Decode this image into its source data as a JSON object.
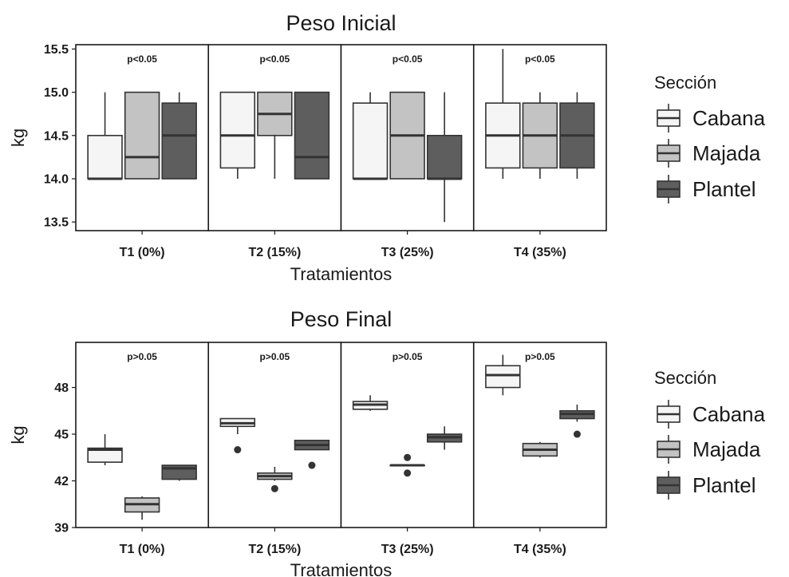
{
  "chart_data": [
    {
      "type": "boxplot",
      "title": "Peso Inicial",
      "xlabel": "Tratamientos",
      "ylabel": "kg",
      "ylim": [
        13.4,
        15.55
      ],
      "yticks": [
        13.5,
        14.0,
        14.5,
        15.0,
        15.5
      ],
      "ytick_labels": [
        "13.5",
        "14.0",
        "14.5",
        "15.0",
        "15.5"
      ],
      "legend": {
        "title": "Sección",
        "entries": [
          "Cabana",
          "Majada",
          "Plantel"
        ],
        "placement": "right"
      },
      "facets": [
        {
          "label": "T1 (0%)",
          "annotation": "p<0.05",
          "boxes": [
            {
              "series": "Cabana",
              "min": 14.0,
              "q1": 14.0,
              "median": 14.0,
              "q3": 14.5,
              "max": 15.0,
              "outliers": []
            },
            {
              "series": "Majada",
              "min": 14.0,
              "q1": 14.0,
              "median": 14.25,
              "q3": 15.0,
              "max": 15.0,
              "outliers": []
            },
            {
              "series": "Plantel",
              "min": 14.0,
              "q1": 14.0,
              "median": 14.5,
              "q3": 14.875,
              "max": 15.0,
              "outliers": []
            }
          ]
        },
        {
          "label": "T2 (15%)",
          "annotation": "p<0.05",
          "boxes": [
            {
              "series": "Cabana",
              "min": 14.0,
              "q1": 14.125,
              "median": 14.5,
              "q3": 15.0,
              "max": 15.0,
              "outliers": []
            },
            {
              "series": "Majada",
              "min": 14.0,
              "q1": 14.5,
              "median": 14.75,
              "q3": 15.0,
              "max": 15.0,
              "outliers": []
            },
            {
              "series": "Plantel",
              "min": 14.0,
              "q1": 14.0,
              "median": 14.25,
              "q3": 15.0,
              "max": 15.0,
              "outliers": []
            }
          ]
        },
        {
          "label": "T3 (25%)",
          "annotation": "p<0.05",
          "boxes": [
            {
              "series": "Cabana",
              "min": 14.0,
              "q1": 14.0,
              "median": 14.0,
              "q3": 14.875,
              "max": 15.0,
              "outliers": []
            },
            {
              "series": "Majada",
              "min": 14.0,
              "q1": 14.0,
              "median": 14.5,
              "q3": 15.0,
              "max": 15.0,
              "outliers": []
            },
            {
              "series": "Plantel",
              "min": 13.5,
              "q1": 14.0,
              "median": 14.0,
              "q3": 14.5,
              "max": 15.0,
              "outliers": []
            }
          ]
        },
        {
          "label": "T4 (35%)",
          "annotation": "p<0.05",
          "boxes": [
            {
              "series": "Cabana",
              "min": 14.0,
              "q1": 14.125,
              "median": 14.5,
              "q3": 14.875,
              "max": 15.5,
              "outliers": []
            },
            {
              "series": "Majada",
              "min": 14.0,
              "q1": 14.125,
              "median": 14.5,
              "q3": 14.875,
              "max": 15.0,
              "outliers": []
            },
            {
              "series": "Plantel",
              "min": 14.0,
              "q1": 14.125,
              "median": 14.5,
              "q3": 14.875,
              "max": 15.0,
              "outliers": []
            }
          ]
        }
      ]
    },
    {
      "type": "boxplot",
      "title": "Peso Final",
      "xlabel": "Tratamientos",
      "ylabel": "kg",
      "ylim": [
        39.0,
        50.9
      ],
      "yticks": [
        39,
        42,
        45,
        48
      ],
      "ytick_labels": [
        "39",
        "42",
        "45",
        "48"
      ],
      "legend": {
        "title": "Sección",
        "entries": [
          "Cabana",
          "Majada",
          "Plantel"
        ],
        "placement": "right"
      },
      "facets": [
        {
          "label": "T1 (0%)",
          "annotation": "p>0.05",
          "boxes": [
            {
              "series": "Cabana",
              "min": 43.0,
              "q1": 43.2,
              "median": 44.0,
              "q3": 44.1,
              "max": 45.0,
              "outliers": []
            },
            {
              "series": "Majada",
              "min": 39.5,
              "q1": 40.0,
              "median": 40.5,
              "q3": 40.9,
              "max": 41.0,
              "outliers": []
            },
            {
              "series": "Plantel",
              "min": 42.0,
              "q1": 42.1,
              "median": 42.8,
              "q3": 43.0,
              "max": 43.0,
              "outliers": []
            }
          ]
        },
        {
          "label": "T2 (15%)",
          "annotation": "p>0.05",
          "boxes": [
            {
              "series": "Cabana",
              "min": 45.0,
              "q1": 45.5,
              "median": 45.7,
              "q3": 46.0,
              "max": 46.0,
              "outliers": [
                44.0
              ]
            },
            {
              "series": "Majada",
              "min": 42.0,
              "q1": 42.1,
              "median": 42.3,
              "q3": 42.5,
              "max": 42.9,
              "outliers": [
                41.5
              ]
            },
            {
              "series": "Plantel",
              "min": 44.0,
              "q1": 44.0,
              "median": 44.3,
              "q3": 44.6,
              "max": 44.6,
              "outliers": [
                43.0
              ]
            }
          ]
        },
        {
          "label": "T3 (25%)",
          "annotation": "p>0.05",
          "boxes": [
            {
              "series": "Cabana",
              "min": 46.5,
              "q1": 46.6,
              "median": 46.9,
              "q3": 47.1,
              "max": 47.5,
              "outliers": []
            },
            {
              "series": "Majada",
              "min": 43.0,
              "q1": 43.0,
              "median": 43.0,
              "q3": 43.0,
              "max": 43.0,
              "outliers": [
                43.5,
                42.5
              ]
            },
            {
              "series": "Plantel",
              "min": 44.0,
              "q1": 44.5,
              "median": 44.8,
              "q3": 45.0,
              "max": 45.5,
              "outliers": []
            }
          ]
        },
        {
          "label": "T4 (35%)",
          "annotation": "p>0.05",
          "boxes": [
            {
              "series": "Cabana",
              "min": 47.5,
              "q1": 48.0,
              "median": 48.8,
              "q3": 49.4,
              "max": 50.1,
              "outliers": []
            },
            {
              "series": "Majada",
              "min": 43.5,
              "q1": 43.6,
              "median": 44.0,
              "q3": 44.4,
              "max": 44.5,
              "outliers": []
            },
            {
              "series": "Plantel",
              "min": 45.8,
              "q1": 46.0,
              "median": 46.3,
              "q3": 46.5,
              "max": 46.9,
              "outliers": [
                45.0
              ]
            }
          ]
        }
      ]
    }
  ],
  "series_colors": {
    "Cabana": "#f5f5f5",
    "Majada": "#c3c3c3",
    "Plantel": "#5e5e5e"
  },
  "outline_color": "#333333",
  "frame_color": "#1a1a1a"
}
